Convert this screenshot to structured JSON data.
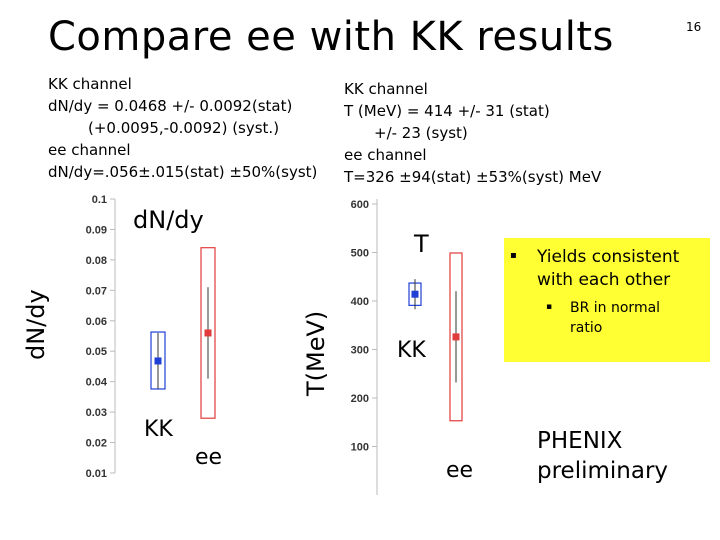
{
  "page_number": "16",
  "title": "Compare ee with KK results",
  "left_info": {
    "line1": "KK channel",
    "line2": "dN/dy = 0.0468 +/- 0.0092(stat)",
    "line3": "(+0.0095,-0.0092) (syst.)",
    "line4": "ee channel",
    "line5": "dN/dy=.056±.015(stat) ±50%(syst)"
  },
  "right_info": {
    "line1": "KK channel",
    "line2": "T (MeV) = 414 +/- 31 (stat)",
    "line3": "+/- 23 (syst)",
    "line4": "ee channel",
    "line5": "T=326 ±94(stat) ±53%(syst) MeV"
  },
  "notes": {
    "bullet": "▪",
    "main_line1": "Yields consistent",
    "main_line2": "with each other",
    "sub_line1": "BR in normal",
    "sub_line2": "ratio"
  },
  "footer": {
    "line1": "PHENIX",
    "line2": "preliminary"
  },
  "colors": {
    "kk": "#1f3fd6",
    "ee": "#e23b3b",
    "note_bg": "#ffff33"
  },
  "chart_data": [
    {
      "type": "scatter",
      "title": "dN/dy",
      "ylabel": "dN/dy",
      "ylim": [
        0.01,
        0.1
      ],
      "ticks": [
        "0.01",
        "0.02",
        "0.03",
        "0.04",
        "0.05",
        "0.06",
        "0.07",
        "0.08",
        "0.09",
        "0.1"
      ],
      "categories": [
        "KK",
        "ee"
      ],
      "series": [
        {
          "name": "KK",
          "value": 0.0468,
          "stat_low": 0.0376,
          "stat_high": 0.056,
          "syst_low": 0.0376,
          "syst_high": 0.0563,
          "color": "#1f3fd6"
        },
        {
          "name": "ee",
          "value": 0.056,
          "stat_low": 0.041,
          "stat_high": 0.071,
          "syst_low": 0.028,
          "syst_high": 0.084,
          "color": "#e23b3b"
        }
      ]
    },
    {
      "type": "scatter",
      "title": "T",
      "ylabel": "T(MeV)",
      "ylim": [
        0,
        600
      ],
      "ticks": [
        "100",
        "200",
        "300",
        "400",
        "500",
        "600"
      ],
      "categories": [
        "KK",
        "ee"
      ],
      "series": [
        {
          "name": "KK",
          "value": 414,
          "stat_low": 383,
          "stat_high": 445,
          "syst_low": 391,
          "syst_high": 437,
          "color": "#1f3fd6"
        },
        {
          "name": "ee",
          "value": 326,
          "stat_low": 232,
          "stat_high": 420,
          "syst_low": 153,
          "syst_high": 499,
          "color": "#e23b3b"
        }
      ]
    }
  ]
}
